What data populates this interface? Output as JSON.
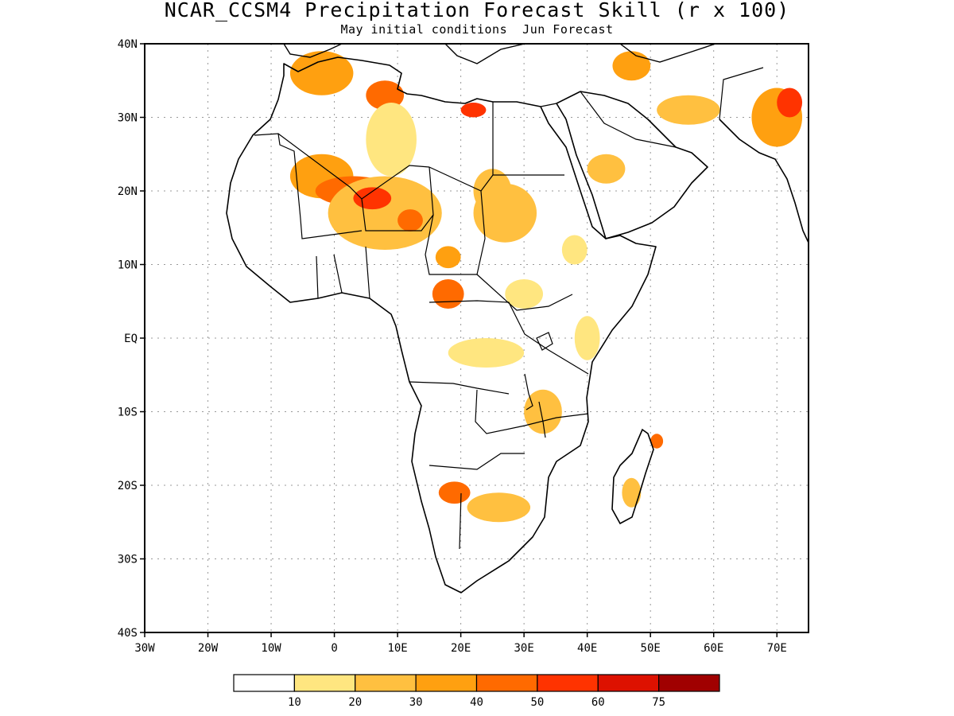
{
  "figure": {
    "title": "NCAR_CCSM4 Precipitation Forecast Skill (r x 100)",
    "subtitle": "May initial conditions  Jun Forecast"
  },
  "map": {
    "extent": {
      "lon": [
        -30,
        75
      ],
      "lat": [
        -40,
        40
      ]
    },
    "x_ticks": [
      {
        "label": "30W",
        "lon": -30
      },
      {
        "label": "20W",
        "lon": -20
      },
      {
        "label": "10W",
        "lon": -10
      },
      {
        "label": "0",
        "lon": 0
      },
      {
        "label": "10E",
        "lon": 10
      },
      {
        "label": "20E",
        "lon": 20
      },
      {
        "label": "30E",
        "lon": 30
      },
      {
        "label": "40E",
        "lon": 40
      },
      {
        "label": "50E",
        "lon": 50
      },
      {
        "label": "60E",
        "lon": 60
      },
      {
        "label": "70E",
        "lon": 70
      }
    ],
    "y_ticks": [
      {
        "label": "40N",
        "lat": 40
      },
      {
        "label": "30N",
        "lat": 30
      },
      {
        "label": "20N",
        "lat": 20
      },
      {
        "label": "10N",
        "lat": 10
      },
      {
        "label": "EQ",
        "lat": 0
      },
      {
        "label": "10S",
        "lat": -10
      },
      {
        "label": "20S",
        "lat": -20
      },
      {
        "label": "30S",
        "lat": -30
      },
      {
        "label": "40S",
        "lat": -40
      }
    ],
    "grid": "dotted"
  },
  "colorbar": {
    "colors": [
      "#ffffff",
      "#ffe680",
      "#ffc040",
      "#ffa010",
      "#ff6a00",
      "#ff3300",
      "#dd1100",
      "#a00000"
    ],
    "labels": [
      "10",
      "20",
      "30",
      "40",
      "50",
      "60",
      "75"
    ]
  },
  "skill_regions": [
    {
      "lon": -2,
      "lat": 36,
      "rx": 5,
      "ry": 3,
      "level": 3
    },
    {
      "lon": -2,
      "lat": 22,
      "rx": 5,
      "ry": 3,
      "level": 3
    },
    {
      "lon": 3,
      "lat": 20,
      "rx": 6,
      "ry": 2,
      "level": 4
    },
    {
      "lon": 8,
      "lat": 17,
      "rx": 9,
      "ry": 5,
      "level": 2
    },
    {
      "lon": 6,
      "lat": 19,
      "rx": 3,
      "ry": 1.5,
      "level": 5
    },
    {
      "lon": 12,
      "lat": 16,
      "rx": 2,
      "ry": 1.5,
      "level": 4
    },
    {
      "lon": 8,
      "lat": 33,
      "rx": 3,
      "ry": 2,
      "level": 4
    },
    {
      "lon": 22,
      "lat": 31,
      "rx": 2,
      "ry": 1,
      "level": 5
    },
    {
      "lon": 9,
      "lat": 27,
      "rx": 4,
      "ry": 5,
      "level": 1
    },
    {
      "lon": 27,
      "lat": 17,
      "rx": 5,
      "ry": 4,
      "level": 2
    },
    {
      "lon": 18,
      "lat": 11,
      "rx": 2,
      "ry": 1.5,
      "level": 3
    },
    {
      "lon": 18,
      "lat": 6,
      "rx": 2.5,
      "ry": 2,
      "level": 4
    },
    {
      "lon": 24,
      "lat": -2,
      "rx": 6,
      "ry": 2,
      "level": 1
    },
    {
      "lon": 30,
      "lat": 6,
      "rx": 3,
      "ry": 2,
      "level": 1
    },
    {
      "lon": 40,
      "lat": 0,
      "rx": 2,
      "ry": 3,
      "level": 1
    },
    {
      "lon": 33,
      "lat": -10,
      "rx": 3,
      "ry": 3,
      "level": 2
    },
    {
      "lon": 19,
      "lat": -21,
      "rx": 2.5,
      "ry": 1.5,
      "level": 4
    },
    {
      "lon": 26,
      "lat": -23,
      "rx": 5,
      "ry": 2,
      "level": 2
    },
    {
      "lon": 47,
      "lat": -21,
      "rx": 1.5,
      "ry": 2,
      "level": 2
    },
    {
      "lon": 51,
      "lat": -14,
      "rx": 1,
      "ry": 1,
      "level": 4
    },
    {
      "lon": 43,
      "lat": 23,
      "rx": 3,
      "ry": 2,
      "level": 2
    },
    {
      "lon": 56,
      "lat": 31,
      "rx": 5,
      "ry": 2,
      "level": 2
    },
    {
      "lon": 47,
      "lat": 37,
      "rx": 3,
      "ry": 2,
      "level": 3
    },
    {
      "lon": 70,
      "lat": 30,
      "rx": 4,
      "ry": 4,
      "level": 3
    },
    {
      "lon": 72,
      "lat": 32,
      "rx": 2,
      "ry": 2,
      "level": 5
    },
    {
      "lon": 38,
      "lat": 12,
      "rx": 2,
      "ry": 2,
      "level": 1
    },
    {
      "lon": 25,
      "lat": 20,
      "rx": 3,
      "ry": 3,
      "level": 2
    }
  ]
}
